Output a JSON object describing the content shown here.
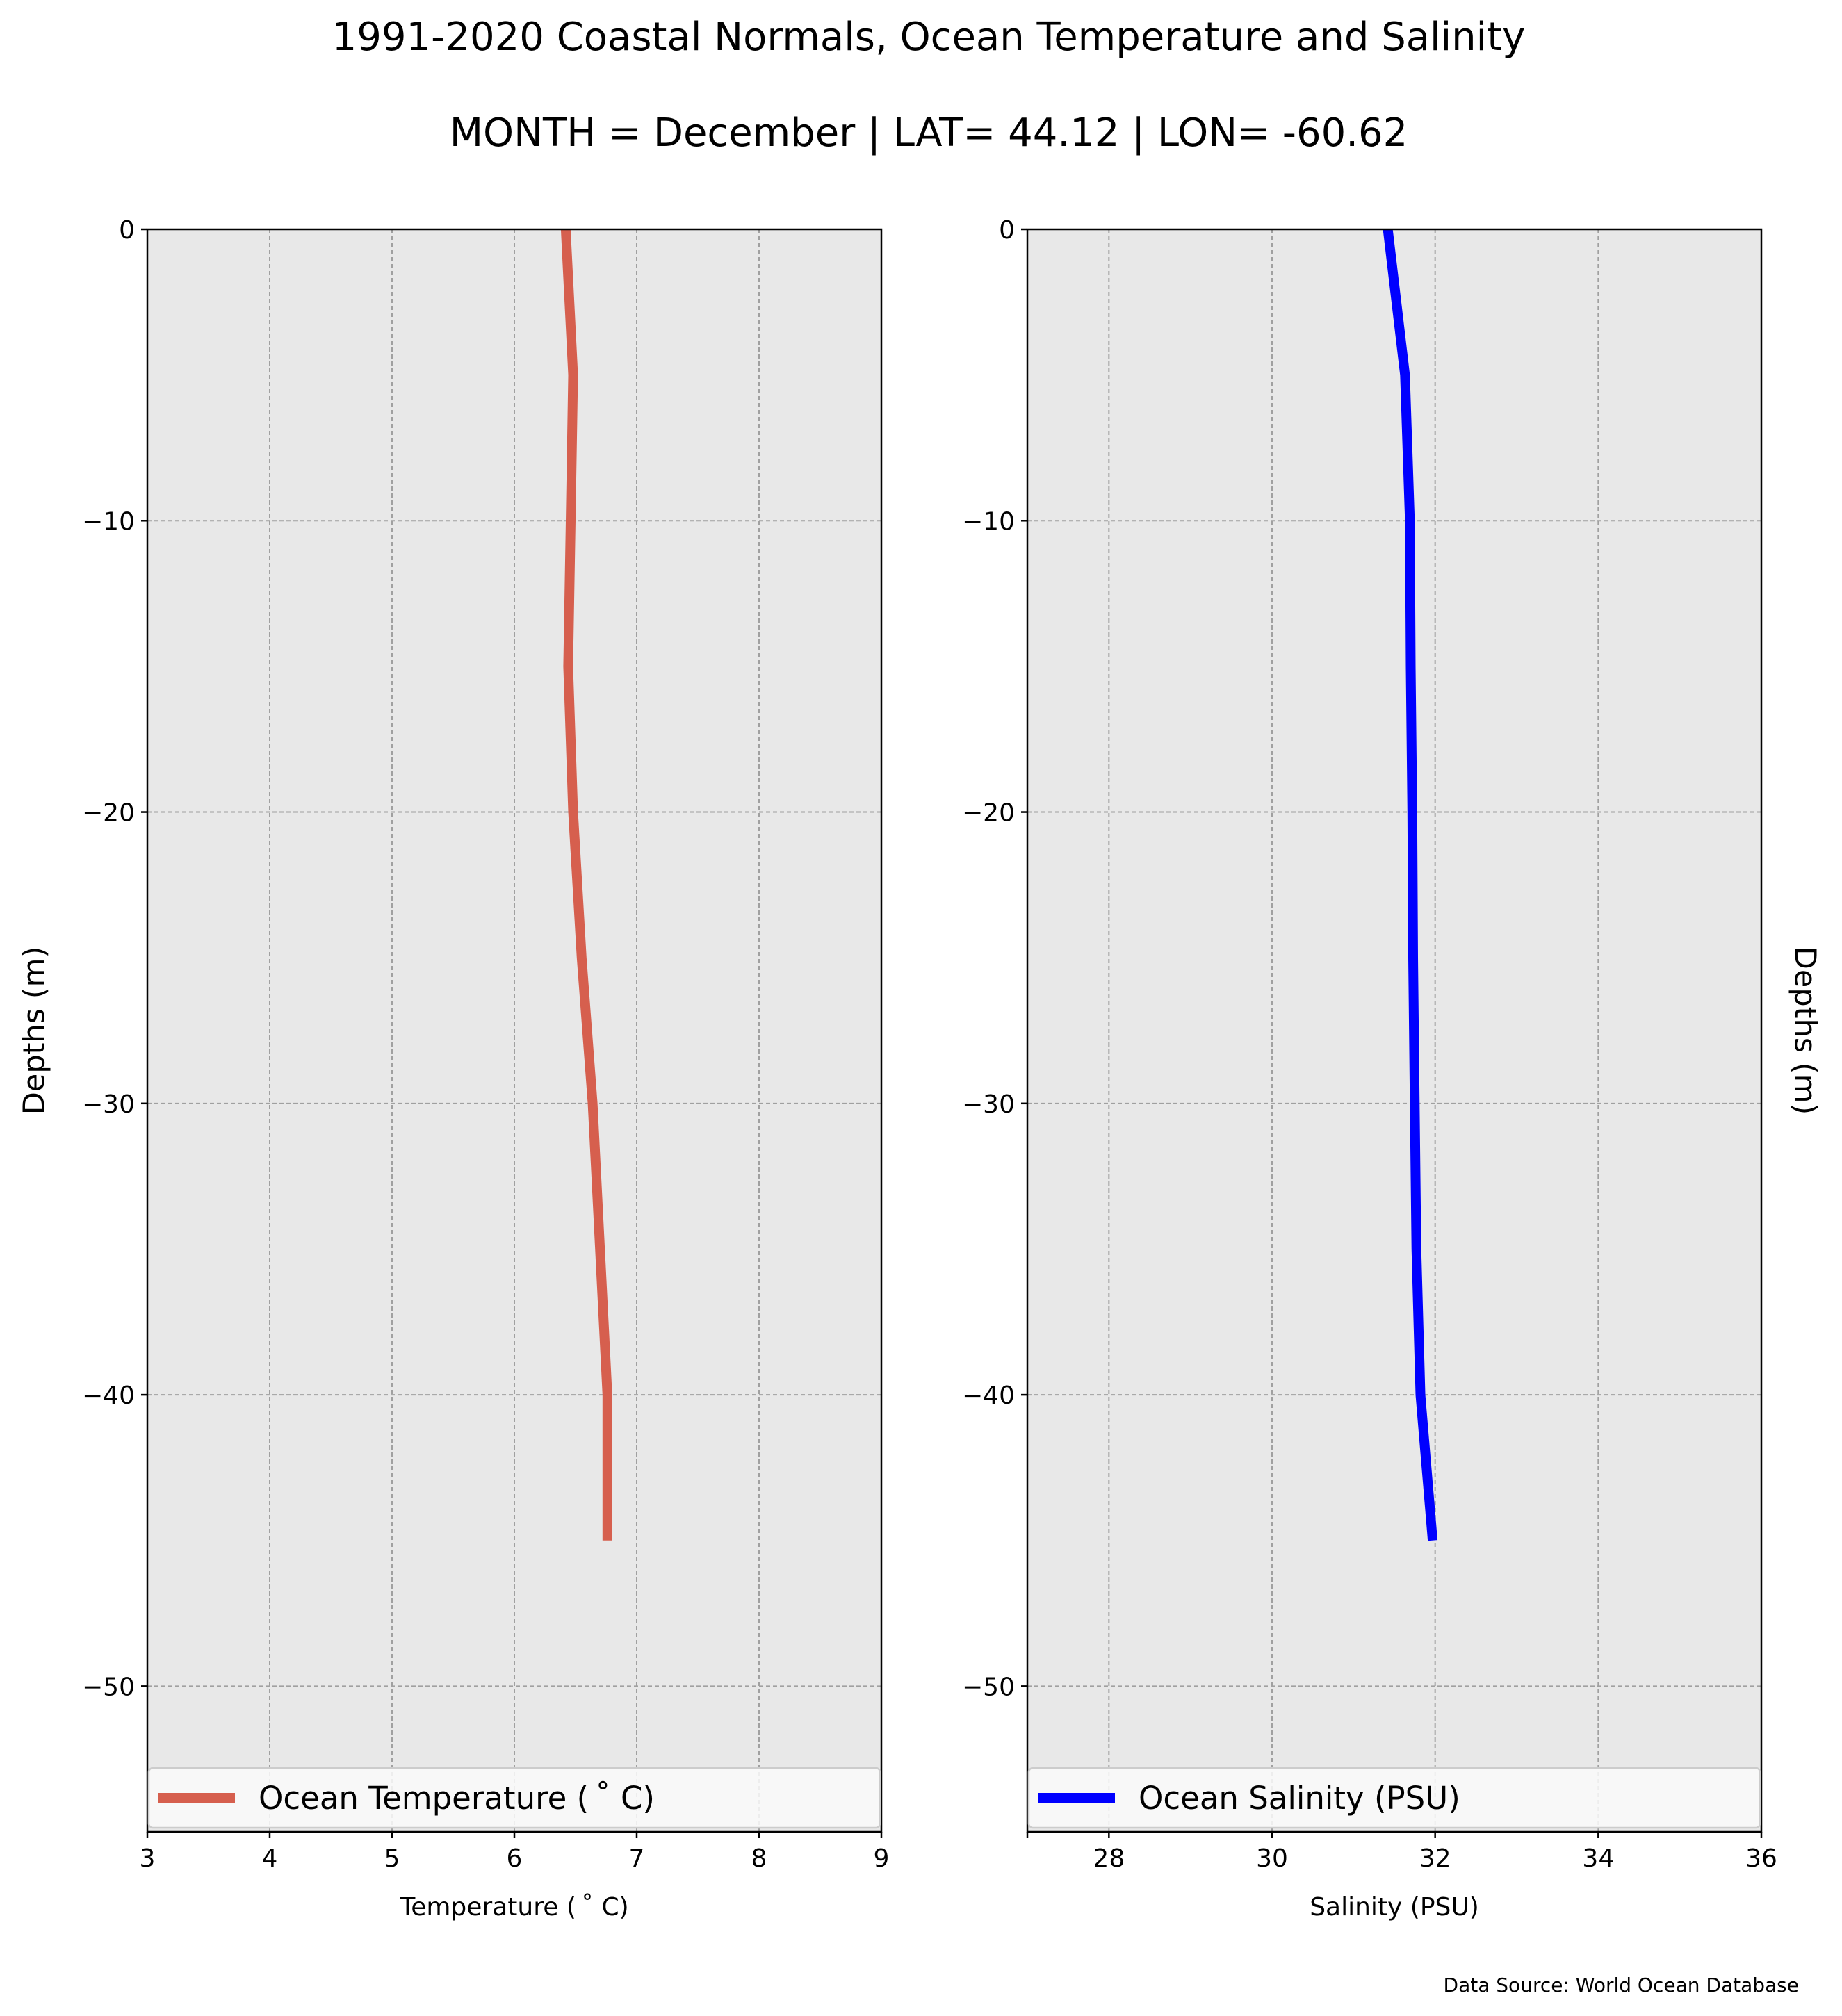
{
  "figure": {
    "title": "1991-2020 Coastal Normals, Ocean Temperature and Salinity",
    "subtitle": "MONTH = December | LAT= 44.12 | LON= -60.62",
    "source_note": "Data Source: World Ocean Database"
  },
  "chart_data": [
    {
      "type": "line",
      "orientation": "vertical-profile",
      "xlabel": "Temperature ($^\\circ$C)",
      "xlabel_display": "Temperature ( ˚ C)",
      "ylabel": "Depths (m)",
      "ylabel_side": "left",
      "xlim": [
        3,
        9
      ],
      "ylim": [
        -55,
        0
      ],
      "xticks": [
        3,
        4,
        5,
        6,
        7,
        8,
        9
      ],
      "yticks": [
        0,
        -10,
        -20,
        -30,
        -40,
        -50
      ],
      "grid": true,
      "legend": "bottom",
      "series": [
        {
          "name": "Ocean Temperature ( ˚ C)",
          "color": "#d65f4e",
          "x": [
            6.42,
            6.48,
            6.46,
            6.44,
            6.48,
            6.55,
            6.64,
            6.7,
            6.76,
            6.76
          ],
          "y": [
            0,
            -5,
            -10,
            -15,
            -20,
            -25,
            -30,
            -35,
            -40,
            -45
          ]
        }
      ]
    },
    {
      "type": "line",
      "orientation": "vertical-profile",
      "xlabel": "Salinity (PSU)",
      "ylabel": "Depths (m)",
      "ylabel_side": "right",
      "xlim": [
        27,
        36
      ],
      "ylim": [
        -55,
        0
      ],
      "xticks": [
        28,
        30,
        32,
        34,
        36
      ],
      "yticks": [
        0,
        -10,
        -20,
        -30,
        -40,
        -50
      ],
      "grid": true,
      "legend": "bottom",
      "series": [
        {
          "name": "Ocean Salinity (PSU)",
          "color": "#0000ff",
          "x": [
            31.42,
            31.63,
            31.69,
            31.7,
            31.72,
            31.73,
            31.75,
            31.77,
            31.82,
            31.97
          ],
          "y": [
            0,
            -5,
            -10,
            -15,
            -20,
            -25,
            -30,
            -35,
            -40,
            -45
          ]
        }
      ]
    }
  ]
}
